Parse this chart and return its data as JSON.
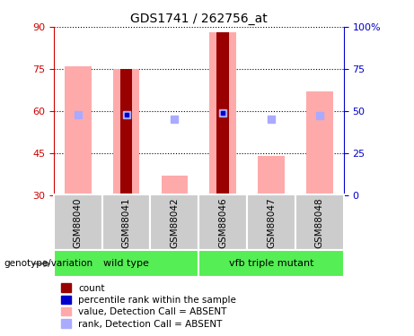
{
  "title": "GDS1741 / 262756_at",
  "samples": [
    "GSM88040",
    "GSM88041",
    "GSM88042",
    "GSM88046",
    "GSM88047",
    "GSM88048"
  ],
  "groups": [
    {
      "label": "wild type",
      "indices": [
        0,
        1,
        2
      ],
      "color": "#66ee66"
    },
    {
      "label": "vfb triple mutant",
      "indices": [
        3,
        4,
        5
      ],
      "color": "#44dd44"
    }
  ],
  "ylim_left": [
    30,
    90
  ],
  "ylim_right": [
    0,
    100
  ],
  "yticks_left": [
    30,
    45,
    60,
    75,
    90
  ],
  "yticks_right": [
    0,
    25,
    50,
    75,
    100
  ],
  "ytick_labels_right": [
    "0",
    "25",
    "50",
    "75",
    "100%"
  ],
  "left_axis_color": "#cc0000",
  "right_axis_color": "#0000cc",
  "value_bars": {
    "color": "#ffaaaa",
    "heights": [
      76,
      75,
      37,
      88,
      44,
      67
    ],
    "base": 30
  },
  "rank_marks": {
    "color": "#aaaaff",
    "values": [
      48,
      48,
      45,
      49,
      45,
      47
    ]
  },
  "count_bars": {
    "color": "#990000",
    "heights": [
      0,
      75,
      0,
      88,
      0,
      0
    ],
    "base": 30
  },
  "percentile_marks": {
    "color": "#0000cc",
    "values": [
      null,
      48,
      null,
      49,
      null,
      null
    ]
  },
  "grid_color": "#000000",
  "legend_items": [
    {
      "label": "count",
      "color": "#990000"
    },
    {
      "label": "percentile rank within the sample",
      "color": "#0000cc"
    },
    {
      "label": "value, Detection Call = ABSENT",
      "color": "#ffaaaa"
    },
    {
      "label": "rank, Detection Call = ABSENT",
      "color": "#aaaaff"
    }
  ],
  "mark_size": 6,
  "genotype_label": "genotype/variation",
  "gray_box_color": "#cccccc",
  "green_box_color": "#55ee55",
  "background_color": "#ffffff"
}
